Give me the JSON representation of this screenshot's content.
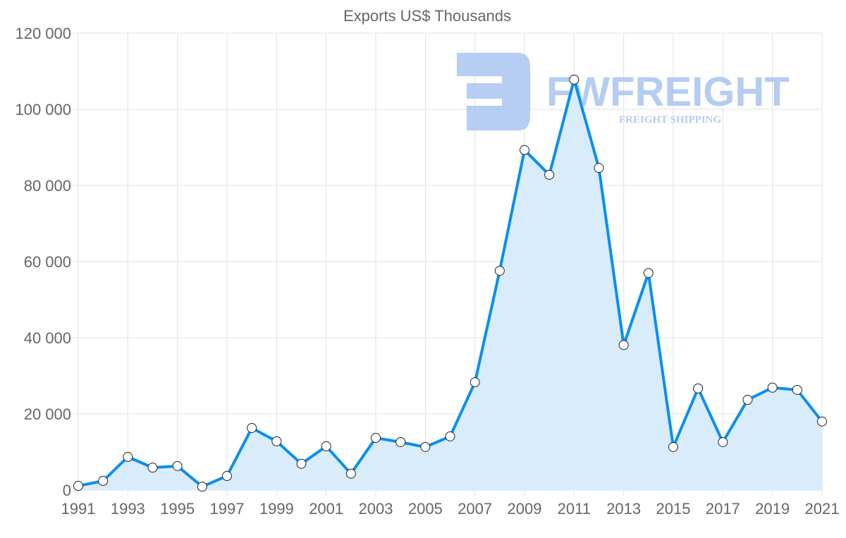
{
  "chart_data": {
    "type": "area",
    "title": "Exports US$ Thousands",
    "xlabel": "",
    "ylabel": "",
    "ylim": [
      0,
      120000
    ],
    "yticks": [
      0,
      20000,
      40000,
      60000,
      80000,
      100000,
      120000
    ],
    "ytick_labels": [
      "0",
      "20 000",
      "40 000",
      "60 000",
      "80 000",
      "100 000",
      "120 000"
    ],
    "xtick_labels": [
      "1991",
      "1993",
      "1995",
      "1997",
      "1999",
      "2001",
      "2003",
      "2005",
      "2007",
      "2009",
      "2011",
      "2013",
      "2015",
      "2017",
      "2019",
      "2021"
    ],
    "grid": true,
    "series": [
      {
        "name": "Exports",
        "color": "#0a8ff0",
        "fill": "#d9ecfc",
        "x": [
          1991,
          1992,
          1993,
          1994,
          1995,
          1996,
          1997,
          1998,
          1999,
          2000,
          2001,
          2002,
          2003,
          2004,
          2005,
          2006,
          2007,
          2008,
          2009,
          2010,
          2011,
          2012,
          2013,
          2014,
          2015,
          2016,
          2017,
          2018,
          2019,
          2020,
          2021
        ],
        "values": [
          1100,
          2400,
          8700,
          5900,
          6300,
          900,
          3700,
          16300,
          12800,
          6900,
          11500,
          4300,
          13700,
          12600,
          11300,
          14100,
          28300,
          57600,
          89300,
          82800,
          107800,
          84600,
          38100,
          57000,
          11300,
          26700,
          12600,
          23700,
          26900,
          26300,
          18000
        ]
      }
    ]
  },
  "watermark": {
    "brand": "FWFREIGHT",
    "tagline": "FREIGHT SHIPPING",
    "color": "#a9c4f2"
  }
}
